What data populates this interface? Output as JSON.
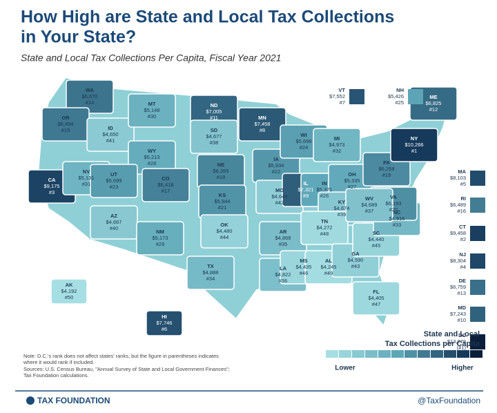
{
  "title": [
    "How High are State and Local Tax Collections",
    "in Your State?"
  ],
  "subtitle": "State and Local Tax Collections Per Capita, Fiscal Year 2021",
  "states": [
    {
      "abbr": "WA",
      "value": "$6,670",
      "rank": "#14"
    },
    {
      "abbr": "OR",
      "value": "$6,494",
      "rank": "#15"
    },
    {
      "abbr": "CA",
      "value": "$9,175",
      "rank": "#3"
    },
    {
      "abbr": "NV",
      "value": "$5,131",
      "rank": "#31"
    },
    {
      "abbr": "ID",
      "value": "$4,650",
      "rank": "#41"
    },
    {
      "abbr": "MT",
      "value": "$5,148",
      "rank": "#30"
    },
    {
      "abbr": "WY",
      "value": "$5,213",
      "rank": "#28"
    },
    {
      "abbr": "UT",
      "value": "$5,699",
      "rank": "#23"
    },
    {
      "abbr": "AZ",
      "value": "$4,667",
      "rank": "#40"
    },
    {
      "abbr": "CO",
      "value": "$6,418",
      "rank": "#17"
    },
    {
      "abbr": "NM",
      "value": "$5,173",
      "rank": "#29"
    },
    {
      "abbr": "ND",
      "value": "$7,005",
      "rank": "#11"
    },
    {
      "abbr": "SD",
      "value": "$4,677",
      "rank": "#38"
    },
    {
      "abbr": "NE",
      "value": "$6,355",
      "rank": "#18"
    },
    {
      "abbr": "KS",
      "value": "$5,944",
      "rank": "#21"
    },
    {
      "abbr": "OK",
      "value": "$4,480",
      "rank": "#44"
    },
    {
      "abbr": "TX",
      "value": "$4,888",
      "rank": "#34"
    },
    {
      "abbr": "MN",
      "value": "$7,458",
      "rank": "#8"
    },
    {
      "abbr": "IA",
      "value": "$5,934",
      "rank": "#22"
    },
    {
      "abbr": "MO",
      "value": "$4,644",
      "rank": "#42"
    },
    {
      "abbr": "AR",
      "value": "$4,868",
      "rank": "#35"
    },
    {
      "abbr": "LA",
      "value": "$4,822",
      "rank": "#36"
    },
    {
      "abbr": "WI",
      "value": "$5,698",
      "rank": "#24"
    },
    {
      "abbr": "IL",
      "value": "$7,321",
      "rank": "#9"
    },
    {
      "abbr": "MI",
      "value": "$4,973",
      "rank": "#32"
    },
    {
      "abbr": "IN",
      "value": "$5,371",
      "rank": "#26"
    },
    {
      "abbr": "OH",
      "value": "$5,335",
      "rank": "#27"
    },
    {
      "abbr": "KY",
      "value": "$4,674",
      "rank": "#39"
    },
    {
      "abbr": "TN",
      "value": "$4,272",
      "rank": "#48"
    },
    {
      "abbr": "MS",
      "value": "$4,435",
      "rank": "#46"
    },
    {
      "abbr": "AL",
      "value": "$4,245",
      "rank": "#49"
    },
    {
      "abbr": "GA",
      "value": "$4,590",
      "rank": "#43"
    },
    {
      "abbr": "FL",
      "value": "$4,405",
      "rank": "#47"
    },
    {
      "abbr": "SC",
      "value": "$4,440",
      "rank": "#45"
    },
    {
      "abbr": "NC",
      "value": "$4,916",
      "rank": "#33"
    },
    {
      "abbr": "VA",
      "value": "$6,193",
      "rank": "#20"
    },
    {
      "abbr": "WV",
      "value": "$4,689",
      "rank": "#37"
    },
    {
      "abbr": "PA",
      "value": "$6,259",
      "rank": "#19"
    },
    {
      "abbr": "NY",
      "value": "$10,266",
      "rank": "#1"
    },
    {
      "abbr": "ME",
      "value": "$6,825",
      "rank": "#12"
    },
    {
      "abbr": "AK",
      "value": "$4,192",
      "rank": "#50"
    },
    {
      "abbr": "HI",
      "value": "$7,746",
      "rank": "#6"
    }
  ],
  "sidebar_states": [
    {
      "abbr": "VT",
      "value": "$7,552",
      "rank": "#7"
    },
    {
      "abbr": "NH",
      "value": "$5,426",
      "rank": "#25"
    },
    {
      "abbr": "MA",
      "value": "$8,103",
      "rank": "#5"
    },
    {
      "abbr": "RI",
      "value": "$6,489",
      "rank": "#16"
    },
    {
      "abbr": "CT",
      "value": "$9,458",
      "rank": "#2"
    },
    {
      "abbr": "NJ",
      "value": "$8,304",
      "rank": "#4"
    },
    {
      "abbr": "DE",
      "value": "$6,759",
      "rank": "#13"
    },
    {
      "abbr": "MD",
      "value": "$7,243",
      "rank": "#10"
    },
    {
      "abbr": "DC",
      "value": "$13,278",
      "rank": "(#1)"
    }
  ],
  "legend": {
    "title": [
      "State and Local",
      "Tax Collections per Capita"
    ],
    "low": "Lower",
    "high": "Higher"
  },
  "notes": [
    "Note: D.C.'s rank does not affect states' ranks, but the figure in parentheses indicates",
    "where it would rank if included.",
    "Sources: U.S. Census Bureau, \"Annual Survey of State and Local Government Finances\";",
    "Tax Foundation calculations."
  ],
  "footer": {
    "brand": "TAX FOUNDATION",
    "handle": "@TaxFoundation"
  }
}
